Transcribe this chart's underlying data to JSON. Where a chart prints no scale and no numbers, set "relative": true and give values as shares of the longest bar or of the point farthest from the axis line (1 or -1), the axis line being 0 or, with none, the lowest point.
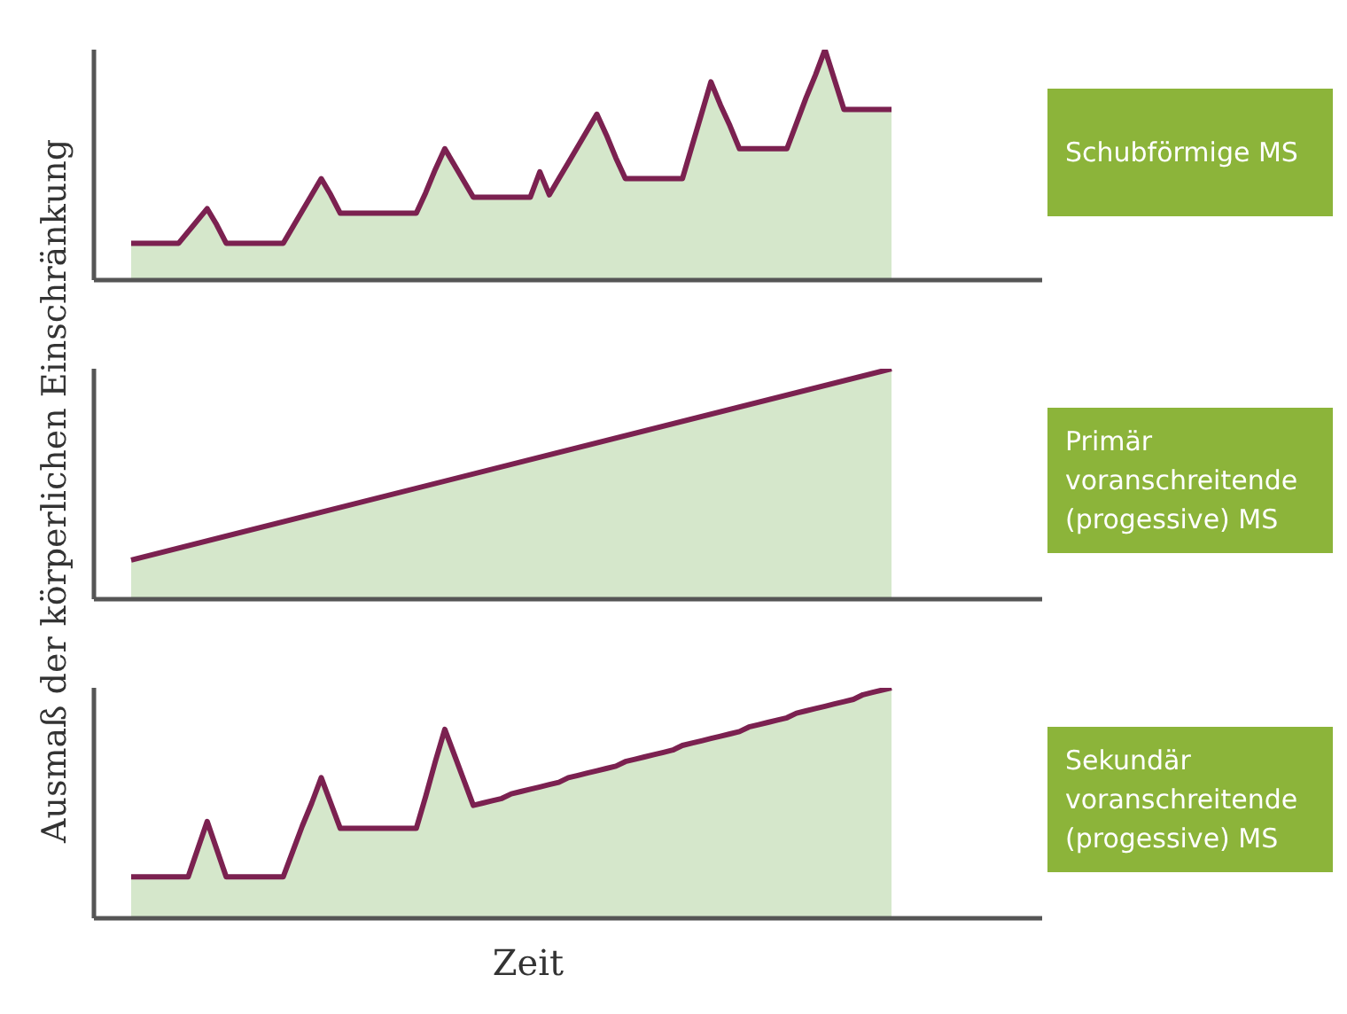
{
  "chart_data": [
    {
      "type": "area",
      "relative": true,
      "annotations": [
        "Schubförmige MS"
      ],
      "categories": [
        null,
        null,
        null,
        null,
        null,
        null,
        null,
        null,
        null,
        null,
        null,
        null,
        null,
        null,
        null,
        null,
        null,
        null,
        null,
        null,
        null,
        null,
        null,
        null,
        null,
        null,
        null,
        null,
        null,
        null,
        null,
        null,
        null,
        null,
        null,
        null,
        null,
        null,
        null,
        null,
        null,
        null,
        null,
        null,
        null,
        null,
        null,
        null,
        null,
        null,
        null,
        null,
        null,
        null,
        null,
        null,
        null,
        null,
        null,
        null,
        null,
        null,
        null,
        null,
        null,
        null,
        null,
        null,
        null,
        null,
        null,
        null,
        null,
        null,
        null,
        null,
        null,
        null,
        null,
        null,
        null
      ],
      "series": [
        {
          "color": "#7b2150",
          "values": [
            0.16,
            0.16,
            0.16,
            0.16,
            0.16,
            0.16,
            0.21,
            0.26,
            0.31,
            0.24,
            0.16,
            0.16,
            0.16,
            0.16,
            0.16,
            0.16,
            0.16,
            0.23,
            0.3,
            0.37,
            0.44,
            0.37,
            0.29,
            0.29,
            0.29,
            0.29,
            0.29,
            0.29,
            0.29,
            0.29,
            0.29,
            0.38,
            0.48,
            0.57,
            0.5,
            0.43,
            0.36,
            0.36,
            0.36,
            0.36,
            0.36,
            0.36,
            0.36,
            0.47,
            0.37,
            0.44,
            0.51,
            0.58,
            0.65,
            0.72,
            0.63,
            0.53,
            0.44,
            0.44,
            0.44,
            0.44,
            0.44,
            0.44,
            0.44,
            0.58,
            0.72,
            0.86,
            0.76,
            0.67,
            0.57,
            0.57,
            0.57,
            0.57,
            0.57,
            0.57,
            0.68,
            0.79,
            0.89,
            1,
            0.87,
            0.74,
            0.74,
            0.74,
            0.74,
            0.74,
            0.74
          ]
        }
      ]
    },
    {
      "type": "area",
      "relative": true,
      "ylabel": "Ausmaß der körperlichen Einschränkung",
      "annotations": [
        "Primär voranschreitende (progessive) MS"
      ],
      "categories": [
        null,
        null
      ],
      "series": [
        {
          "color": "#7b2150",
          "values": [
            0.17,
            1
          ]
        }
      ]
    },
    {
      "type": "area",
      "relative": true,
      "xlabel": "Zeit",
      "annotations": [
        "Sekundär voranschreitende (progessive) MS"
      ],
      "categories": [
        null,
        null,
        null,
        null,
        null,
        null,
        null,
        null,
        null,
        null,
        null,
        null,
        null,
        null,
        null,
        null,
        null,
        null,
        null,
        null,
        null,
        null,
        null,
        null,
        null,
        null,
        null,
        null,
        null,
        null,
        null,
        null,
        null,
        null,
        null,
        null,
        null,
        null,
        null,
        null,
        null,
        null,
        null,
        null,
        null,
        null,
        null,
        null,
        null,
        null,
        null,
        null,
        null,
        null,
        null,
        null,
        null,
        null,
        null,
        null,
        null,
        null,
        null,
        null,
        null,
        null,
        null,
        null,
        null,
        null,
        null,
        null,
        null,
        null,
        null,
        null,
        null,
        null,
        null,
        null,
        null
      ],
      "series": [
        {
          "color": "#7b2150",
          "values": [
            0.18,
            0.18,
            0.18,
            0.18,
            0.18,
            0.18,
            0.18,
            0.3,
            0.42,
            0.3,
            0.18,
            0.18,
            0.18,
            0.18,
            0.18,
            0.18,
            0.18,
            0.29,
            0.4,
            0.5,
            0.61,
            0.5,
            0.39,
            0.39,
            0.39,
            0.39,
            0.39,
            0.39,
            0.39,
            0.39,
            0.39,
            0.53,
            0.68,
            0.82,
            0.71,
            0.6,
            0.49,
            0.5,
            0.51,
            0.52,
            0.54,
            0.55,
            0.56,
            0.57,
            0.58,
            0.59,
            0.61,
            0.62,
            0.63,
            0.64,
            0.65,
            0.66,
            0.68,
            0.69,
            0.7,
            0.71,
            0.72,
            0.73,
            0.75,
            0.76,
            0.77,
            0.78,
            0.79,
            0.8,
            0.81,
            0.83,
            0.84,
            0.85,
            0.86,
            0.87,
            0.89,
            0.9,
            0.91,
            0.92,
            0.93,
            0.94,
            0.95,
            0.97,
            0.98,
            0.99,
            1
          ]
        }
      ]
    }
  ]
}
